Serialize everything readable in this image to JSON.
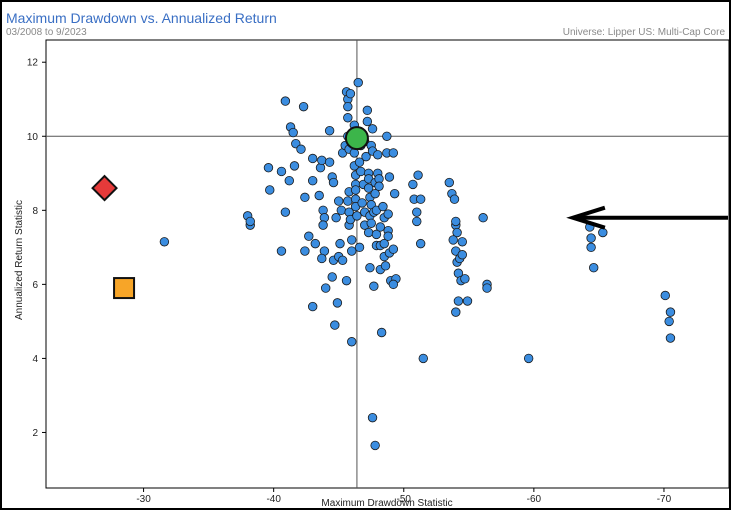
{
  "header": {
    "title": "Maximum Drawdown vs. Annualized Return",
    "period": "03/2008 to 9/2023",
    "universe": "Universe: Lipper US: Multi-Cap Core"
  },
  "chart_data": {
    "type": "scatter",
    "title": "Maximum Drawdown vs. Annualized Return",
    "xlabel": "Maximum Drawdown Statistic",
    "ylabel": "Annualized Return Statistic",
    "xlim": [
      -22.5,
      -75
    ],
    "ylim": [
      0.5,
      12.6
    ],
    "x_ticks": [
      -30,
      -40,
      -50,
      -60,
      -70
    ],
    "y_ticks": [
      2,
      4,
      6,
      8,
      10,
      12
    ],
    "reference_lines": {
      "x": -46.4,
      "y": 10.0
    },
    "colors": {
      "points": "#3b8de0",
      "highlight_circle": "#3cb54a",
      "diamond": "#e53a3a",
      "square": "#f7a528",
      "arrow": "#000000"
    },
    "highlight": {
      "shape": "circle",
      "x": -46.4,
      "y": 9.95
    },
    "markers": [
      {
        "shape": "diamond",
        "x": -27.0,
        "y": 8.6
      },
      {
        "shape": "square",
        "x": -28.5,
        "y": 5.9
      }
    ],
    "arrow": {
      "from": [
        -75,
        7.8
      ],
      "to": [
        -63,
        7.8
      ]
    },
    "points": [
      [
        -31.6,
        7.15
      ],
      [
        -38.0,
        7.85
      ],
      [
        -38.2,
        7.6
      ],
      [
        -38.2,
        7.7
      ],
      [
        -39.6,
        9.15
      ],
      [
        -39.7,
        8.55
      ],
      [
        -40.6,
        9.05
      ],
      [
        -40.6,
        6.9
      ],
      [
        -40.9,
        10.95
      ],
      [
        -40.9,
        7.95
      ],
      [
        -41.2,
        8.8
      ],
      [
        -41.3,
        10.25
      ],
      [
        -41.5,
        10.1
      ],
      [
        -41.7,
        9.8
      ],
      [
        -41.6,
        9.2
      ],
      [
        -42.1,
        9.65
      ],
      [
        -42.3,
        10.8
      ],
      [
        -42.4,
        8.35
      ],
      [
        -42.4,
        6.9
      ],
      [
        -42.7,
        7.3
      ],
      [
        -43.0,
        9.4
      ],
      [
        -43.0,
        8.8
      ],
      [
        -43.2,
        7.1
      ],
      [
        -43.0,
        5.4
      ],
      [
        -43.5,
        8.4
      ],
      [
        -43.8,
        8.0
      ],
      [
        -43.9,
        7.8
      ],
      [
        -43.8,
        7.6
      ],
      [
        -43.6,
        9.15
      ],
      [
        -43.7,
        9.35
      ],
      [
        -43.9,
        6.9
      ],
      [
        -43.7,
        6.7
      ],
      [
        -44.0,
        5.9
      ],
      [
        -44.3,
        9.3
      ],
      [
        -44.5,
        8.9
      ],
      [
        -44.6,
        8.75
      ],
      [
        -44.3,
        10.15
      ],
      [
        -44.5,
        6.2
      ],
      [
        -44.6,
        6.65
      ],
      [
        -44.7,
        4.9
      ],
      [
        -44.8,
        7.8
      ],
      [
        -44.9,
        5.5
      ],
      [
        -45.0,
        8.25
      ],
      [
        -45.2,
        8.0
      ],
      [
        -45.1,
        7.1
      ],
      [
        -45.0,
        6.75
      ],
      [
        -45.3,
        6.65
      ],
      [
        -45.3,
        9.55
      ],
      [
        -45.5,
        9.75
      ],
      [
        -45.7,
        10.0
      ],
      [
        -45.6,
        11.2
      ],
      [
        -45.7,
        11.0
      ],
      [
        -45.9,
        11.15
      ],
      [
        -45.7,
        10.8
      ],
      [
        -45.7,
        10.5
      ],
      [
        -45.8,
        9.65
      ],
      [
        -45.8,
        8.5
      ],
      [
        -45.7,
        8.25
      ],
      [
        -45.8,
        7.95
      ],
      [
        -45.8,
        7.6
      ],
      [
        -45.9,
        7.75
      ],
      [
        -46.0,
        7.2
      ],
      [
        -46.0,
        6.9
      ],
      [
        -45.6,
        6.1
      ],
      [
        -46.0,
        4.45
      ],
      [
        -46.2,
        10.3
      ],
      [
        -46.2,
        9.55
      ],
      [
        -46.2,
        9.2
      ],
      [
        -46.3,
        8.95
      ],
      [
        -46.3,
        8.7
      ],
      [
        -46.3,
        8.55
      ],
      [
        -46.3,
        8.3
      ],
      [
        -46.3,
        8.1
      ],
      [
        -46.4,
        7.85
      ],
      [
        -46.5,
        11.45
      ],
      [
        -46.6,
        10.05
      ],
      [
        -46.6,
        9.3
      ],
      [
        -46.6,
        7.0
      ],
      [
        -46.7,
        9.75
      ],
      [
        -46.7,
        9.05
      ],
      [
        -46.8,
        8.2
      ],
      [
        -46.9,
        8.7
      ],
      [
        -47.0,
        7.95
      ],
      [
        -47.0,
        7.6
      ],
      [
        -47.0,
        9.85
      ],
      [
        -47.1,
        9.45
      ],
      [
        -47.2,
        10.7
      ],
      [
        -47.2,
        10.4
      ],
      [
        -47.3,
        9.0
      ],
      [
        -47.3,
        8.85
      ],
      [
        -47.3,
        8.6
      ],
      [
        -47.4,
        8.35
      ],
      [
        -47.4,
        7.85
      ],
      [
        -47.3,
        7.4
      ],
      [
        -47.4,
        6.45
      ],
      [
        -47.5,
        9.75
      ],
      [
        -47.5,
        8.15
      ],
      [
        -47.5,
        7.65
      ],
      [
        -47.6,
        10.2
      ],
      [
        -47.6,
        9.6
      ],
      [
        -47.7,
        7.95
      ],
      [
        -47.8,
        8.75
      ],
      [
        -47.8,
        8.45
      ],
      [
        -47.9,
        8.0
      ],
      [
        -47.9,
        7.35
      ],
      [
        -47.9,
        7.05
      ],
      [
        -47.7,
        5.95
      ],
      [
        -48.0,
        9.5
      ],
      [
        -48.0,
        9.0
      ],
      [
        -48.1,
        8.85
      ],
      [
        -48.1,
        8.65
      ],
      [
        -48.2,
        7.55
      ],
      [
        -48.2,
        7.05
      ],
      [
        -48.2,
        6.4
      ],
      [
        -48.3,
        4.7
      ],
      [
        -48.4,
        8.1
      ],
      [
        -48.5,
        7.8
      ],
      [
        -48.5,
        7.1
      ],
      [
        -48.5,
        6.75
      ],
      [
        -48.6,
        6.5
      ],
      [
        -48.7,
        10.0
      ],
      [
        -48.7,
        9.55
      ],
      [
        -48.8,
        7.9
      ],
      [
        -48.8,
        7.45
      ],
      [
        -48.8,
        7.3
      ],
      [
        -48.9,
        8.9
      ],
      [
        -48.9,
        6.85
      ],
      [
        -49.0,
        6.1
      ],
      [
        -49.2,
        9.55
      ],
      [
        -49.3,
        8.45
      ],
      [
        -49.2,
        6.95
      ],
      [
        -49.4,
        6.15
      ],
      [
        -49.2,
        6.0
      ],
      [
        -47.6,
        2.4
      ],
      [
        -47.8,
        1.65
      ],
      [
        -50.7,
        8.7
      ],
      [
        -50.8,
        8.3
      ],
      [
        -51.0,
        7.95
      ],
      [
        -51.0,
        7.7
      ],
      [
        -51.1,
        8.95
      ],
      [
        -51.3,
        8.3
      ],
      [
        -51.3,
        7.1
      ],
      [
        -51.5,
        4.0
      ],
      [
        -53.5,
        8.75
      ],
      [
        -53.7,
        8.45
      ],
      [
        -53.9,
        8.3
      ],
      [
        -54.0,
        7.6
      ],
      [
        -54.1,
        7.4
      ],
      [
        -54.0,
        7.7
      ],
      [
        -53.8,
        7.2
      ],
      [
        -54.0,
        6.9
      ],
      [
        -54.1,
        6.6
      ],
      [
        -54.2,
        6.3
      ],
      [
        -54.3,
        6.7
      ],
      [
        -54.5,
        7.15
      ],
      [
        -54.5,
        6.8
      ],
      [
        -54.4,
        6.1
      ],
      [
        -54.7,
        6.15
      ],
      [
        -54.2,
        5.55
      ],
      [
        -54.0,
        5.25
      ],
      [
        -54.9,
        5.55
      ],
      [
        -56.1,
        7.8
      ],
      [
        -56.4,
        6.0
      ],
      [
        -56.4,
        5.9
      ],
      [
        -59.6,
        4.0
      ],
      [
        -64.3,
        7.55
      ],
      [
        -64.4,
        7.25
      ],
      [
        -64.4,
        7.0
      ],
      [
        -64.6,
        6.45
      ],
      [
        -65.3,
        7.4
      ],
      [
        -70.1,
        5.7
      ],
      [
        -70.5,
        5.25
      ],
      [
        -70.4,
        5.0
      ],
      [
        -70.5,
        4.55
      ]
    ]
  }
}
